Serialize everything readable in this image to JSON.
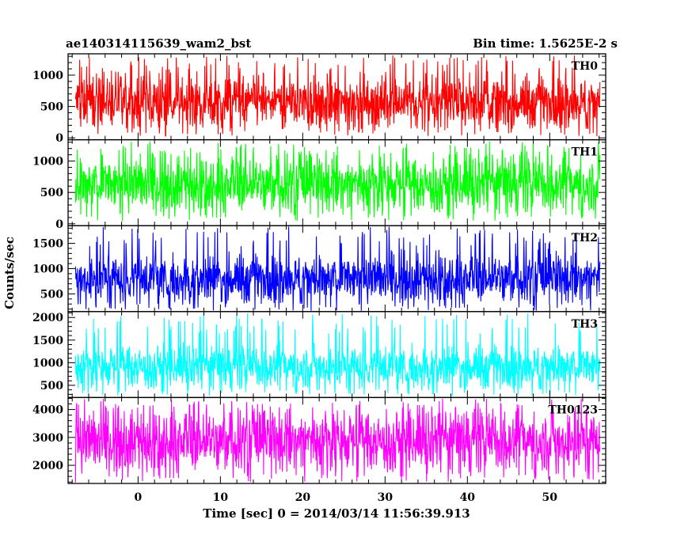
{
  "header": {
    "title": "ae140314115639_wam2_bst",
    "bin_time": "Bin time: 1.5625E-2 s"
  },
  "chart_data": {
    "type": "line",
    "title": "ae140314115639_wam2_bst",
    "subtitle": "Bin time: 1.5625E-2 s",
    "xlabel": "Time [sec] 0 = 2014/03/14 11:56:39.913",
    "ylabel": "Counts/sec",
    "xlim": [
      -8.5,
      56.8
    ],
    "x_data_range": [
      -7.6,
      56.1
    ],
    "x_ticks": [
      0,
      10,
      20,
      30,
      40,
      50
    ],
    "x_tick_labels": [
      "0",
      "10",
      "20",
      "30",
      "40",
      "50"
    ],
    "grid": false,
    "panels": [
      {
        "name": "TH0",
        "color": "#ff0000",
        "ylim": [
          -30,
          1340
        ],
        "y_ticks": [
          0,
          500,
          1000
        ],
        "y_tick_labels": [
          "0",
          "500",
          "1000"
        ],
        "baseline": 580,
        "low": 20,
        "high": 1320
      },
      {
        "name": "TH1",
        "color": "#00ff00",
        "ylim": [
          -30,
          1340
        ],
        "y_ticks": [
          0,
          500,
          1000
        ],
        "y_tick_labels": [
          "0",
          "500",
          "1000"
        ],
        "baseline": 640,
        "low": 40,
        "high": 1320
      },
      {
        "name": "TH2",
        "color": "#0000ff",
        "ylim": [
          150,
          1850
        ],
        "y_ticks": [
          500,
          1000,
          1500
        ],
        "y_tick_labels": [
          "500",
          "1000",
          "1500"
        ],
        "baseline": 820,
        "low": 160,
        "high": 1840
      },
      {
        "name": "TH3",
        "color": "#00ffff",
        "ylim": [
          230,
          2130
        ],
        "y_ticks": [
          500,
          1000,
          1500,
          2000
        ],
        "y_tick_labels": [
          "500",
          "1000",
          "1500",
          "2000"
        ],
        "baseline": 930,
        "low": 260,
        "high": 2100
      },
      {
        "name": "TH0123",
        "color": "#ff00ff",
        "ylim": [
          1350,
          4430
        ],
        "y_ticks": [
          2000,
          3000,
          4000
        ],
        "y_tick_labels": [
          "2000",
          "3000",
          "4000"
        ],
        "baseline": 2900,
        "low": 1380,
        "high": 4400
      }
    ]
  }
}
